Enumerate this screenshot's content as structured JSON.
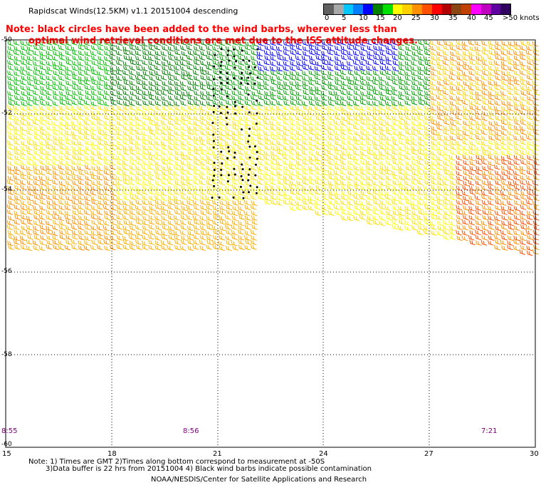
{
  "header": {
    "title": "Rapidscat Winds(12.5KM) v1.1 20151004 descending",
    "note_line1": "Note: black circles have been added to the wind barbs, wherever less than",
    "note_line2": "optimal wind retrieval conditions are met due to the ISS attitude changes."
  },
  "legend": {
    "labels": [
      "0",
      "5",
      "10",
      "15",
      "20",
      "25",
      "30",
      "35",
      "40",
      "45",
      ">50 knots"
    ],
    "colors": [
      "#606060",
      "#a8a8a8",
      "#00c8ff",
      "#0080ff",
      "#0000ff",
      "#008000",
      "#00e000",
      "#ffff00",
      "#ffd000",
      "#ff9000",
      "#ff5000",
      "#ff0000",
      "#b00000",
      "#8b4513",
      "#c04000",
      "#ff00ff",
      "#c000c0",
      "#6000a0",
      "#300060"
    ]
  },
  "axes": {
    "y_labels": [
      "-50",
      "-52",
      "-54",
      "-56",
      "-58",
      "-60"
    ],
    "x_labels": [
      "15",
      "18",
      "21",
      "24",
      "27",
      "30"
    ]
  },
  "times": [
    "8:55",
    "8:56",
    "7:21"
  ],
  "footer": {
    "line1": "Note: 1) Times are GMT 2)Times along bottom correspond to measurement at -50S",
    "line2": "3)Data buffer is 22 hrs from 20151004 4) Black wind barbs indicate possible contamination",
    "line3": "NOAA/NESDIS/Center for Satellite Applications and Research"
  },
  "map": {
    "lat_range": [
      -60,
      -50
    ],
    "lon_range": [
      15,
      30
    ],
    "grid": true
  }
}
